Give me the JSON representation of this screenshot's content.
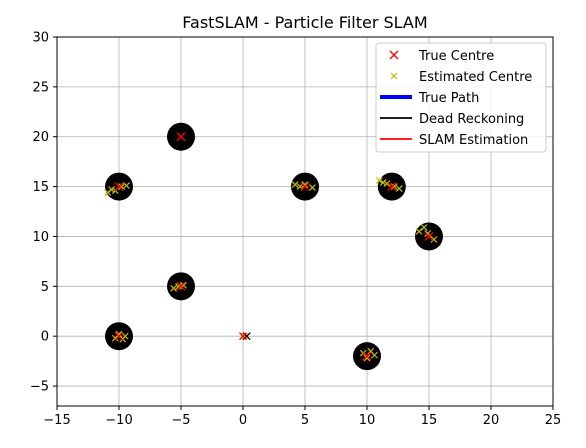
{
  "chart_data": {
    "type": "scatter",
    "title": "FastSLAM - Particle Filter SLAM",
    "xlabel": "",
    "ylabel": "",
    "xlim": [
      -15,
      25
    ],
    "ylim": [
      -7,
      30
    ],
    "xticks": [
      -15,
      -10,
      -5,
      0,
      5,
      10,
      15,
      20,
      25
    ],
    "yticks": [
      -5,
      0,
      5,
      10,
      15,
      20,
      25,
      30
    ],
    "grid": true,
    "legend_position": "top-right",
    "legend": [
      {
        "label": "True Centre",
        "marker": "x",
        "color": "#ff0000"
      },
      {
        "label": "Estimated Centre",
        "marker": "x-small",
        "color": "#bfbf00"
      },
      {
        "label": "True Path",
        "line": "thick",
        "color": "#0000ff"
      },
      {
        "label": "Dead Reckoning",
        "line": "solid",
        "color": "#000000"
      },
      {
        "label": "SLAM Estimation",
        "line": "solid",
        "color": "#ff0000"
      }
    ],
    "landmarks": [
      {
        "x": -5,
        "y": 20
      },
      {
        "x": -10,
        "y": 15
      },
      {
        "x": 5,
        "y": 15
      },
      {
        "x": 12,
        "y": 15
      },
      {
        "x": 15,
        "y": 10
      },
      {
        "x": -5,
        "y": 5
      },
      {
        "x": -10,
        "y": 0
      },
      {
        "x": 10,
        "y": -2
      }
    ],
    "landmark_color": "#000000",
    "true_centres": [
      {
        "x": -5,
        "y": 20
      },
      {
        "x": -10,
        "y": 15
      },
      {
        "x": 5,
        "y": 15
      },
      {
        "x": 12,
        "y": 15
      },
      {
        "x": 15,
        "y": 10
      },
      {
        "x": -5,
        "y": 5
      },
      {
        "x": -10,
        "y": 0
      },
      {
        "x": 10,
        "y": -2
      }
    ],
    "estimated_centres": [
      {
        "x": -10.9,
        "y": 14.4
      },
      {
        "x": -10.6,
        "y": 14.7
      },
      {
        "x": -10.3,
        "y": 14.6
      },
      {
        "x": -9.4,
        "y": 15.1
      },
      {
        "x": -9.8,
        "y": 15.0
      },
      {
        "x": 4.2,
        "y": 15.2
      },
      {
        "x": 4.6,
        "y": 15.0
      },
      {
        "x": 5.0,
        "y": 15.2
      },
      {
        "x": 5.6,
        "y": 14.9
      },
      {
        "x": 11.0,
        "y": 15.6
      },
      {
        "x": 11.3,
        "y": 15.4
      },
      {
        "x": 11.6,
        "y": 15.3
      },
      {
        "x": 12.2,
        "y": 15.0
      },
      {
        "x": 12.6,
        "y": 14.8
      },
      {
        "x": 14.2,
        "y": 10.5
      },
      {
        "x": 14.6,
        "y": 10.9
      },
      {
        "x": 14.9,
        "y": 10.3
      },
      {
        "x": 15.4,
        "y": 9.7
      },
      {
        "x": -5.6,
        "y": 4.8
      },
      {
        "x": -5.2,
        "y": 5.0
      },
      {
        "x": -4.8,
        "y": 5.1
      },
      {
        "x": -10.3,
        "y": -0.2
      },
      {
        "x": -10.0,
        "y": 0.2
      },
      {
        "x": -9.7,
        "y": -0.3
      },
      {
        "x": -9.5,
        "y": 0.0
      },
      {
        "x": 9.7,
        "y": -1.7
      },
      {
        "x": 10.0,
        "y": -2.2
      },
      {
        "x": 10.3,
        "y": -1.5
      },
      {
        "x": 10.6,
        "y": -1.9
      },
      {
        "x": 0.1,
        "y": 0.0
      }
    ],
    "start_marker": {
      "x": 0.3,
      "y": 0.0,
      "color": "#000000"
    },
    "start_true_marker": {
      "x": 0.0,
      "y": 0.0,
      "color": "#ff0000"
    }
  }
}
